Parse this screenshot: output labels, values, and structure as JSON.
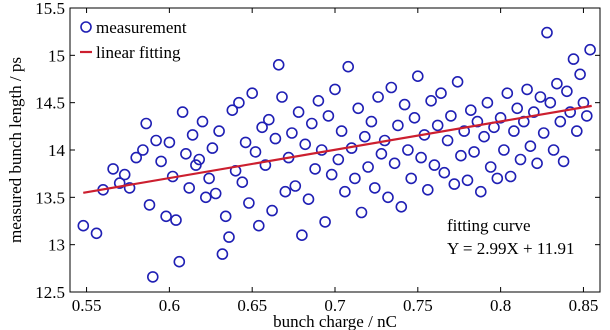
{
  "chart_data": {
    "type": "scatter",
    "xlabel": "bunch charge / nC",
    "ylabel": "measured bunch length / ps",
    "xlim": [
      0.54,
      0.86
    ],
    "ylim": [
      12.5,
      15.5
    ],
    "xticks": [
      "0.55",
      "0.6",
      "0.65",
      "0.7",
      "0.75",
      "0.8",
      "0.85"
    ],
    "yticks": [
      "12.5",
      "13",
      "13.5",
      "14",
      "14.5",
      "15",
      "15.5"
    ],
    "grid": false,
    "legend_position": "top-left",
    "legend": {
      "measurement": "measurement",
      "fit": "linear fitting"
    },
    "series": [
      {
        "name": "measurement",
        "kind": "scatter",
        "color": "#1f1fb4",
        "marker": "open-circle",
        "points": [
          [
            0.548,
            13.2
          ],
          [
            0.556,
            13.12
          ],
          [
            0.56,
            13.58
          ],
          [
            0.566,
            13.8
          ],
          [
            0.57,
            13.65
          ],
          [
            0.573,
            13.74
          ],
          [
            0.576,
            13.6
          ],
          [
            0.58,
            13.92
          ],
          [
            0.584,
            14.0
          ],
          [
            0.586,
            14.28
          ],
          [
            0.588,
            13.42
          ],
          [
            0.59,
            12.66
          ],
          [
            0.592,
            14.1
          ],
          [
            0.595,
            13.88
          ],
          [
            0.598,
            13.3
          ],
          [
            0.6,
            14.08
          ],
          [
            0.602,
            13.72
          ],
          [
            0.604,
            13.26
          ],
          [
            0.606,
            12.82
          ],
          [
            0.608,
            14.4
          ],
          [
            0.61,
            13.96
          ],
          [
            0.612,
            13.6
          ],
          [
            0.614,
            14.16
          ],
          [
            0.616,
            13.84
          ],
          [
            0.618,
            13.9
          ],
          [
            0.62,
            14.3
          ],
          [
            0.622,
            13.5
          ],
          [
            0.624,
            13.7
          ],
          [
            0.626,
            14.02
          ],
          [
            0.628,
            13.54
          ],
          [
            0.63,
            14.2
          ],
          [
            0.632,
            12.9
          ],
          [
            0.634,
            13.3
          ],
          [
            0.636,
            13.08
          ],
          [
            0.638,
            14.42
          ],
          [
            0.64,
            13.78
          ],
          [
            0.642,
            14.5
          ],
          [
            0.644,
            13.66
          ],
          [
            0.646,
            14.08
          ],
          [
            0.648,
            13.44
          ],
          [
            0.65,
            14.6
          ],
          [
            0.652,
            13.98
          ],
          [
            0.654,
            13.2
          ],
          [
            0.656,
            14.24
          ],
          [
            0.658,
            13.84
          ],
          [
            0.66,
            14.32
          ],
          [
            0.662,
            13.36
          ],
          [
            0.664,
            14.12
          ],
          [
            0.666,
            14.9
          ],
          [
            0.668,
            14.56
          ],
          [
            0.67,
            13.56
          ],
          [
            0.672,
            13.92
          ],
          [
            0.674,
            14.18
          ],
          [
            0.676,
            13.62
          ],
          [
            0.678,
            14.4
          ],
          [
            0.68,
            13.1
          ],
          [
            0.682,
            14.06
          ],
          [
            0.684,
            13.48
          ],
          [
            0.686,
            14.28
          ],
          [
            0.688,
            13.8
          ],
          [
            0.69,
            14.52
          ],
          [
            0.692,
            14.0
          ],
          [
            0.694,
            13.24
          ],
          [
            0.696,
            14.36
          ],
          [
            0.698,
            13.74
          ],
          [
            0.7,
            14.64
          ],
          [
            0.702,
            13.9
          ],
          [
            0.704,
            14.2
          ],
          [
            0.706,
            13.56
          ],
          [
            0.708,
            14.88
          ],
          [
            0.71,
            14.02
          ],
          [
            0.712,
            13.7
          ],
          [
            0.714,
            14.44
          ],
          [
            0.716,
            13.34
          ],
          [
            0.718,
            14.14
          ],
          [
            0.72,
            13.82
          ],
          [
            0.722,
            14.3
          ],
          [
            0.724,
            13.6
          ],
          [
            0.726,
            14.56
          ],
          [
            0.728,
            13.96
          ],
          [
            0.73,
            14.1
          ],
          [
            0.732,
            13.5
          ],
          [
            0.734,
            14.66
          ],
          [
            0.736,
            13.86
          ],
          [
            0.738,
            14.26
          ],
          [
            0.74,
            13.4
          ],
          [
            0.742,
            14.48
          ],
          [
            0.744,
            14.0
          ],
          [
            0.746,
            13.7
          ],
          [
            0.748,
            14.34
          ],
          [
            0.75,
            14.78
          ],
          [
            0.752,
            13.92
          ],
          [
            0.754,
            14.16
          ],
          [
            0.756,
            13.58
          ],
          [
            0.758,
            14.52
          ],
          [
            0.76,
            13.84
          ],
          [
            0.762,
            14.26
          ],
          [
            0.764,
            14.6
          ],
          [
            0.766,
            13.76
          ],
          [
            0.768,
            14.1
          ],
          [
            0.77,
            14.36
          ],
          [
            0.772,
            13.64
          ],
          [
            0.774,
            14.72
          ],
          [
            0.776,
            13.94
          ],
          [
            0.778,
            14.2
          ],
          [
            0.78,
            13.68
          ],
          [
            0.782,
            14.42
          ],
          [
            0.784,
            13.98
          ],
          [
            0.786,
            14.3
          ],
          [
            0.788,
            13.56
          ],
          [
            0.79,
            14.14
          ],
          [
            0.792,
            14.5
          ],
          [
            0.794,
            13.82
          ],
          [
            0.796,
            14.24
          ],
          [
            0.798,
            13.7
          ],
          [
            0.8,
            14.34
          ],
          [
            0.802,
            14.0
          ],
          [
            0.804,
            14.6
          ],
          [
            0.806,
            13.72
          ],
          [
            0.808,
            14.2
          ],
          [
            0.81,
            14.44
          ],
          [
            0.812,
            13.9
          ],
          [
            0.814,
            14.3
          ],
          [
            0.816,
            14.64
          ],
          [
            0.818,
            14.04
          ],
          [
            0.82,
            14.4
          ],
          [
            0.822,
            13.86
          ],
          [
            0.824,
            14.56
          ],
          [
            0.826,
            14.18
          ],
          [
            0.828,
            15.24
          ],
          [
            0.83,
            14.5
          ],
          [
            0.832,
            14.0
          ],
          [
            0.834,
            14.7
          ],
          [
            0.836,
            14.3
          ],
          [
            0.838,
            13.88
          ],
          [
            0.84,
            14.62
          ],
          [
            0.842,
            14.4
          ],
          [
            0.844,
            14.96
          ],
          [
            0.846,
            14.2
          ],
          [
            0.848,
            14.8
          ],
          [
            0.85,
            14.5
          ],
          [
            0.852,
            14.36
          ],
          [
            0.854,
            15.06
          ]
        ]
      },
      {
        "name": "linear fitting",
        "kind": "line",
        "color": "#cc1f2f",
        "x": [
          0.548,
          0.855
        ],
        "y": [
          13.548,
          14.466
        ]
      }
    ],
    "annotations": {
      "fit_caption": "fitting curve",
      "fit_equation": "Y = 2.99X + 11.91"
    }
  }
}
